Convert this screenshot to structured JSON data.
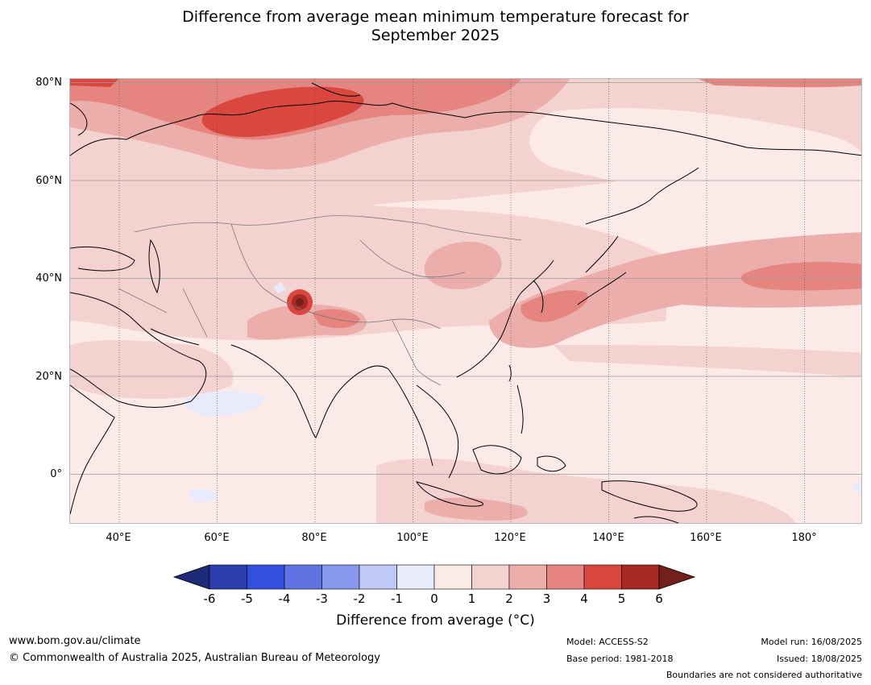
{
  "title": {
    "line1": "Difference from average mean minimum temperature forecast for",
    "line2": "September 2025"
  },
  "map": {
    "projection": "Plate Carree",
    "lat_labels": [
      "80°N",
      "60°N",
      "40°N",
      "20°N",
      "0°"
    ],
    "lon_labels": [
      "40°E",
      "60°E",
      "80°E",
      "100°E",
      "120°E",
      "140°E",
      "160°E",
      "180°"
    ],
    "extent": {
      "lon": [
        30,
        192
      ],
      "lat": [
        -10,
        81
      ]
    },
    "background_anomaly_class": "0 to 1",
    "notable_features": [
      "Warm anomaly (4 to 5) over northern Siberia / Kara Sea region",
      "Warm anomaly (3 to 5) over the Pamir / Karakoram region",
      "Warm anomaly (2 to 4) over Korea, Japan and the North Pacific near 40°N",
      "Small cool anomalies (-1 to 0) over the Arabian Sea and south-west Indian Ocean"
    ]
  },
  "colorbar": {
    "title": "Difference from average (°C)",
    "ticks": [
      "-6",
      "-5",
      "-4",
      "-3",
      "-2",
      "-1",
      "0",
      "1",
      "2",
      "3",
      "4",
      "5",
      "6"
    ],
    "colors": [
      "#1e2a78",
      "#2a3fad",
      "#3151dc",
      "#5f73e3",
      "#8898ec",
      "#c0c8f5",
      "#e8ebfb",
      "#fbeae8",
      "#f4d2d0",
      "#ecaeab",
      "#e6847f",
      "#d9473e",
      "#a92a24",
      "#73201c"
    ]
  },
  "footer": {
    "website": "www.bom.gov.au/climate",
    "copyright": "© Commonwealth of Australia 2025, Australian Bureau of Meteorology",
    "model": "Model: ACCESS-S2",
    "base_period": "Base period: 1981-2018",
    "model_run": "Model run: 16/08/2025",
    "issued": "Issued: 18/08/2025",
    "disclaimer": "Boundaries are not considered authoritative"
  }
}
